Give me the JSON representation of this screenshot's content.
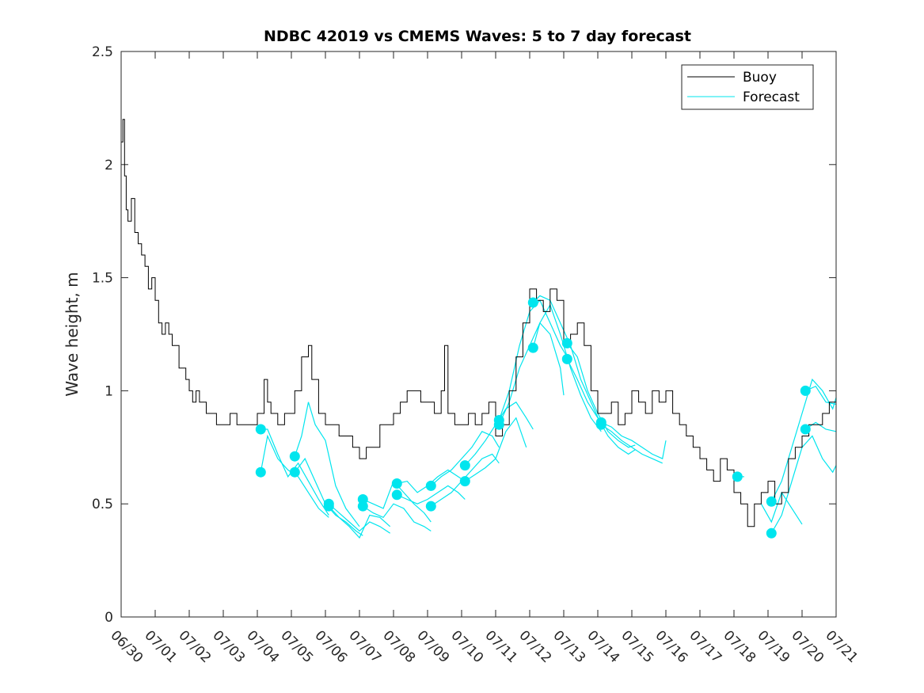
{
  "chart_data": {
    "type": "line",
    "title": "NDBC 42019 vs CMEMS Waves: 5 to 7 day forecast",
    "xlabel": "",
    "ylabel": "Wave height, m",
    "xlim": [
      0,
      21
    ],
    "ylim": [
      0,
      2.5
    ],
    "x_ticks": [
      0,
      1,
      2,
      3,
      4,
      5,
      6,
      7,
      8,
      9,
      10,
      11,
      12,
      13,
      14,
      15,
      16,
      17,
      18,
      19,
      20,
      21
    ],
    "x_tick_labels": [
      "06/30",
      "07/01",
      "07/02",
      "07/03",
      "07/04",
      "07/05",
      "07/06",
      "07/07",
      "07/08",
      "07/09",
      "07/10",
      "07/11",
      "07/12",
      "07/13",
      "07/14",
      "07/15",
      "07/16",
      "07/17",
      "07/18",
      "07/19",
      "07/20",
      "07/21"
    ],
    "y_ticks": [
      0,
      0.5,
      1,
      1.5,
      2,
      2.5
    ],
    "y_tick_labels": [
      "0",
      "0.5",
      "1",
      "1.5",
      "2",
      "2.5"
    ],
    "legend": {
      "placement": "top-right",
      "entries": [
        "Buoy",
        "Forecast"
      ]
    },
    "colors": {
      "buoy": "#000000",
      "forecast": "#00e5ee"
    },
    "buoy": {
      "name": "Buoy",
      "x": [
        0,
        0.05,
        0.1,
        0.15,
        0.2,
        0.3,
        0.4,
        0.5,
        0.6,
        0.7,
        0.8,
        0.9,
        1.0,
        1.1,
        1.2,
        1.3,
        1.4,
        1.5,
        1.6,
        1.7,
        1.8,
        1.9,
        2.0,
        2.1,
        2.2,
        2.3,
        2.5,
        2.6,
        2.8,
        3.0,
        3.2,
        3.4,
        3.6,
        3.8,
        4.0,
        4.2,
        4.3,
        4.4,
        4.6,
        4.8,
        5.0,
        5.1,
        5.3,
        5.5,
        5.6,
        5.8,
        6.0,
        6.2,
        6.4,
        6.6,
        6.8,
        7.0,
        7.2,
        7.4,
        7.6,
        7.8,
        8.0,
        8.2,
        8.4,
        8.6,
        8.8,
        9.0,
        9.2,
        9.4,
        9.5,
        9.6,
        9.8,
        10.0,
        10.2,
        10.4,
        10.6,
        10.8,
        11.0,
        11.2,
        11.4,
        11.6,
        11.8,
        12.0,
        12.2,
        12.4,
        12.6,
        12.8,
        13.0,
        13.2,
        13.4,
        13.6,
        13.8,
        14.0,
        14.2,
        14.4,
        14.6,
        14.8,
        15.0,
        15.2,
        15.4,
        15.6,
        15.8,
        16.0,
        16.2,
        16.4,
        16.6,
        16.8,
        17.0,
        17.2,
        17.4,
        17.6,
        17.8,
        18.0,
        18.2,
        18.4,
        18.6,
        18.8,
        19.0,
        19.2,
        19.4,
        19.6,
        19.8,
        20.0,
        20.2,
        20.4,
        20.6,
        20.8,
        21.0
      ],
      "y": [
        2.1,
        2.2,
        1.95,
        1.8,
        1.75,
        1.85,
        1.7,
        1.65,
        1.6,
        1.55,
        1.45,
        1.5,
        1.4,
        1.3,
        1.25,
        1.3,
        1.25,
        1.2,
        1.2,
        1.1,
        1.1,
        1.05,
        1.0,
        0.95,
        1.0,
        0.95,
        0.9,
        0.9,
        0.85,
        0.85,
        0.9,
        0.85,
        0.85,
        0.85,
        0.9,
        1.05,
        0.95,
        0.9,
        0.85,
        0.9,
        0.9,
        1.0,
        1.15,
        1.2,
        1.05,
        0.9,
        0.85,
        0.85,
        0.8,
        0.8,
        0.75,
        0.7,
        0.75,
        0.75,
        0.85,
        0.85,
        0.9,
        0.95,
        1.0,
        1.0,
        0.95,
        0.95,
        0.9,
        1.0,
        1.2,
        0.9,
        0.85,
        0.85,
        0.9,
        0.85,
        0.9,
        0.95,
        0.8,
        0.85,
        1.0,
        1.15,
        1.3,
        1.45,
        1.4,
        1.35,
        1.45,
        1.4,
        1.2,
        1.25,
        1.3,
        1.2,
        1.0,
        0.9,
        0.9,
        0.95,
        0.85,
        0.9,
        1.0,
        0.95,
        0.9,
        1.0,
        0.95,
        1.0,
        0.9,
        0.85,
        0.8,
        0.75,
        0.7,
        0.65,
        0.6,
        0.7,
        0.65,
        0.55,
        0.5,
        0.4,
        0.5,
        0.55,
        0.6,
        0.5,
        0.55,
        0.7,
        0.75,
        0.8,
        0.85,
        0.85,
        0.9,
        0.95,
        1.0
      ]
    },
    "forecast": [
      {
        "x": [
          4.1,
          4.3,
          4.6,
          4.9,
          5.2,
          5.5,
          5.8,
          6.1
        ],
        "y": [
          0.83,
          0.83,
          0.72,
          0.62,
          0.68,
          0.6,
          0.52,
          0.45
        ]
      },
      {
        "x": [
          4.1,
          4.3,
          4.6,
          4.9,
          5.2,
          5.5,
          5.8,
          6.1
        ],
        "y": [
          0.64,
          0.8,
          0.7,
          0.65,
          0.62,
          0.55,
          0.48,
          0.44
        ]
      },
      {
        "x": [
          5.1,
          5.3,
          5.5,
          5.7,
          6.0,
          6.3,
          6.6,
          7.0
        ],
        "y": [
          0.71,
          0.8,
          0.95,
          0.85,
          0.78,
          0.58,
          0.48,
          0.4
        ]
      },
      {
        "x": [
          5.1,
          5.4,
          5.7,
          6.0,
          6.3,
          6.6,
          6.9,
          7.1
        ],
        "y": [
          0.64,
          0.7,
          0.6,
          0.5,
          0.45,
          0.42,
          0.38,
          0.36
        ]
      },
      {
        "x": [
          6.1,
          6.4,
          6.7,
          7.0,
          7.3,
          7.6,
          7.9
        ],
        "y": [
          0.5,
          0.46,
          0.42,
          0.38,
          0.42,
          0.4,
          0.37
        ]
      },
      {
        "x": [
          6.1,
          6.4,
          6.7,
          7.0,
          7.3,
          7.6,
          7.9
        ],
        "y": [
          0.49,
          0.44,
          0.4,
          0.35,
          0.45,
          0.44,
          0.4
        ]
      },
      {
        "x": [
          7.1,
          7.4,
          7.7,
          8.0,
          8.3,
          8.6,
          8.9,
          9.1
        ],
        "y": [
          0.52,
          0.5,
          0.48,
          0.6,
          0.55,
          0.5,
          0.46,
          0.42
        ]
      },
      {
        "x": [
          7.1,
          7.4,
          7.7,
          8.0,
          8.3,
          8.6,
          8.9,
          9.1
        ],
        "y": [
          0.49,
          0.46,
          0.44,
          0.5,
          0.48,
          0.42,
          0.4,
          0.38
        ]
      },
      {
        "x": [
          8.1,
          8.4,
          8.7,
          9.0,
          9.3,
          9.6,
          9.9,
          10.1
        ],
        "y": [
          0.59,
          0.6,
          0.55,
          0.58,
          0.62,
          0.65,
          0.62,
          0.6
        ]
      },
      {
        "x": [
          8.1,
          8.4,
          8.7,
          9.0,
          9.3,
          9.6,
          9.9,
          10.1
        ],
        "y": [
          0.54,
          0.52,
          0.5,
          0.52,
          0.55,
          0.58,
          0.55,
          0.52
        ]
      },
      {
        "x": [
          9.1,
          9.4,
          9.7,
          10.0,
          10.3,
          10.6,
          10.9,
          11.1
        ],
        "y": [
          0.58,
          0.62,
          0.65,
          0.7,
          0.75,
          0.82,
          0.8,
          0.75
        ]
      },
      {
        "x": [
          9.1,
          9.4,
          9.7,
          10.0,
          10.3,
          10.6,
          10.9,
          11.1
        ],
        "y": [
          0.49,
          0.52,
          0.55,
          0.6,
          0.65,
          0.7,
          0.72,
          0.68
        ]
      },
      {
        "x": [
          10.1,
          10.4,
          10.7,
          11.0,
          11.3,
          11.6,
          11.9,
          12.1
        ],
        "y": [
          0.67,
          0.72,
          0.78,
          0.85,
          0.92,
          0.95,
          0.88,
          0.83
        ]
      },
      {
        "x": [
          10.1,
          10.4,
          10.7,
          11.0,
          11.3,
          11.6,
          11.9
        ],
        "y": [
          0.6,
          0.63,
          0.66,
          0.7,
          0.82,
          0.88,
          0.75
        ]
      },
      {
        "x": [
          11.1,
          11.4,
          11.7,
          12.0,
          12.3,
          12.6,
          12.9,
          13.1
        ],
        "y": [
          0.87,
          1.0,
          1.2,
          1.35,
          1.4,
          1.3,
          1.2,
          1.15
        ]
      },
      {
        "x": [
          11.1,
          11.4,
          11.7,
          12.0,
          12.3,
          12.6,
          12.9,
          13.0
        ],
        "y": [
          0.85,
          0.95,
          1.1,
          1.2,
          1.3,
          1.25,
          1.1,
          0.98
        ]
      },
      {
        "x": [
          12.1,
          12.3,
          12.6,
          12.9,
          13.2,
          13.5,
          13.8,
          14.1
        ],
        "y": [
          1.39,
          1.42,
          1.4,
          1.3,
          1.2,
          1.05,
          0.95,
          0.85
        ]
      },
      {
        "x": [
          12.1,
          12.3,
          12.6,
          12.9,
          13.2,
          13.5,
          13.8,
          14.1
        ],
        "y": [
          1.19,
          1.3,
          1.38,
          1.25,
          1.1,
          0.98,
          0.88,
          0.82
        ]
      },
      {
        "x": [
          13.1,
          13.4,
          13.7,
          14.0,
          14.3,
          14.6,
          14.9,
          15.1
        ],
        "y": [
          1.21,
          1.15,
          1.0,
          0.9,
          0.82,
          0.78,
          0.75,
          0.76
        ]
      },
      {
        "x": [
          13.1,
          13.4,
          13.7,
          14.0,
          14.3,
          14.6,
          14.9,
          15.1
        ],
        "y": [
          1.14,
          1.05,
          0.95,
          0.88,
          0.8,
          0.75,
          0.72,
          0.74
        ]
      },
      {
        "x": [
          14.1,
          14.4,
          14.7,
          15.0,
          15.3,
          15.6,
          15.9,
          16.0
        ],
        "y": [
          0.86,
          0.84,
          0.8,
          0.78,
          0.75,
          0.72,
          0.7,
          0.78
        ]
      },
      {
        "x": [
          14.1,
          14.4,
          14.7,
          15.0,
          15.3,
          15.6,
          15.9
        ],
        "y": [
          0.85,
          0.82,
          0.78,
          0.75,
          0.72,
          0.7,
          0.68
        ]
      },
      {
        "x": [
          18.1,
          18.3
        ],
        "y": [
          0.62,
          0.62
        ]
      },
      {
        "x": [
          19.1,
          19.4,
          19.7,
          20.0,
          20.3,
          20.6,
          20.9,
          21.0
        ],
        "y": [
          0.51,
          0.6,
          0.75,
          0.9,
          1.05,
          1.0,
          0.92,
          0.97
        ]
      },
      {
        "x": [
          19.1,
          19.4,
          19.7,
          20.0,
          20.3,
          20.6,
          20.9,
          21.0
        ],
        "y": [
          0.37,
          0.45,
          0.6,
          0.75,
          0.8,
          0.7,
          0.64,
          0.67
        ]
      },
      {
        "x": [
          20.1,
          20.4,
          20.7,
          21.0
        ],
        "y": [
          1.0,
          1.02,
          0.95,
          0.94
        ]
      },
      {
        "x": [
          20.1,
          20.4,
          20.7,
          21.0
        ],
        "y": [
          0.83,
          0.86,
          0.83,
          0.82
        ]
      },
      {
        "x": [
          18.8,
          19.1,
          19.4,
          19.7,
          20.0
        ],
        "y": [
          0.5,
          0.42,
          0.55,
          0.48,
          0.41
        ]
      }
    ],
    "forecast_points": {
      "x": [
        4.1,
        4.1,
        5.1,
        5.1,
        6.1,
        6.1,
        7.1,
        7.1,
        8.1,
        8.1,
        9.1,
        9.1,
        10.1,
        10.1,
        11.1,
        11.1,
        12.1,
        12.1,
        13.1,
        13.1,
        14.1,
        14.1,
        18.1,
        19.1,
        19.1,
        20.1,
        20.1
      ],
      "y": [
        0.83,
        0.64,
        0.71,
        0.64,
        0.5,
        0.49,
        0.52,
        0.49,
        0.59,
        0.54,
        0.58,
        0.49,
        0.67,
        0.6,
        0.87,
        0.85,
        1.39,
        1.19,
        1.21,
        1.14,
        0.86,
        0.85,
        0.62,
        0.51,
        0.37,
        1.0,
        0.83
      ]
    }
  }
}
